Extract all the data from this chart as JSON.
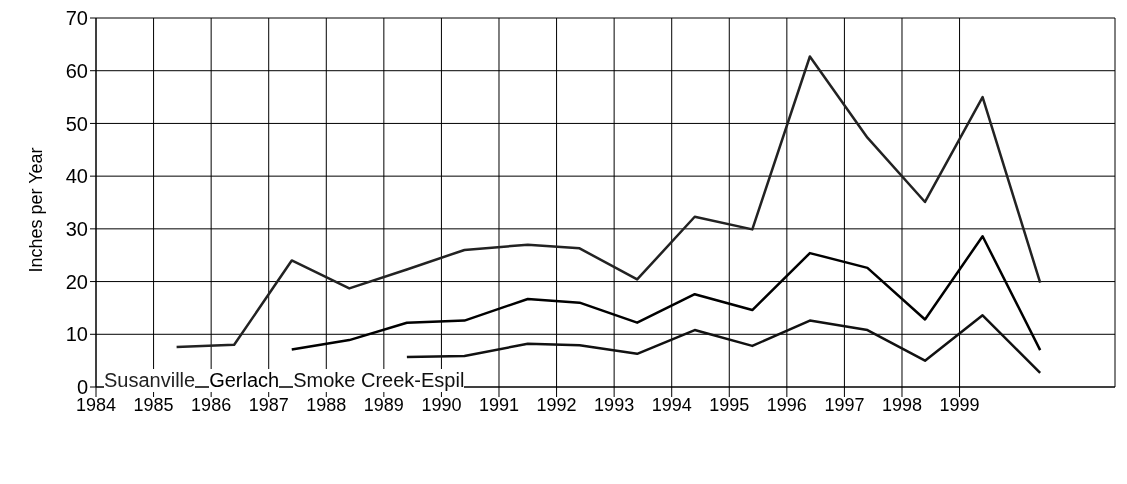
{
  "chart_data": {
    "type": "line",
    "ylabel": "Inches per Year",
    "xlim": [
      1984,
      2001.7
    ],
    "xticks": [
      1984,
      1985,
      1986,
      1987,
      1988,
      1989,
      1990,
      1991,
      1992,
      1993,
      1994,
      1995,
      1996,
      1997,
      1998,
      1999
    ],
    "ylim": [
      0,
      70
    ],
    "yticks": [
      0,
      10,
      20,
      30,
      40,
      50,
      60,
      70
    ],
    "grid": true,
    "legend": "bottom left",
    "marker": "none",
    "line_style": "solid",
    "series": [
      {
        "name": "Susanville",
        "color": "#222222",
        "x": [
          1985.4,
          1986.4,
          1987.4,
          1988.4,
          1989.4,
          1990.4,
          1991.5,
          1992.4,
          1993.4,
          1994.4,
          1995.4,
          1996.4,
          1997.4,
          1998.4,
          1999.4,
          2000.4
        ],
        "values": [
          7.6,
          8.0,
          24,
          18.7,
          22.3,
          26,
          27,
          26.3,
          20.4,
          32.3,
          29.9,
          62.7,
          47.3,
          35.1,
          55,
          19.8
        ]
      },
      {
        "name": "Gerlach",
        "color": "#000000",
        "x": [
          1987.4,
          1988.4,
          1989.4,
          1990.4,
          1991.5,
          1992.4,
          1993.4,
          1994.4,
          1995.4,
          1996.4,
          1997.4,
          1998.4,
          1999.4,
          2000.4
        ],
        "values": [
          7.1,
          8.9,
          12.2,
          12.6,
          16.7,
          16.0,
          12.2,
          17.6,
          14.6,
          25.4,
          22.6,
          12.8,
          28.6,
          7.0
        ]
      },
      {
        "name": "Smoke Creek-Espil",
        "color": "#111111",
        "x": [
          1989.4,
          1990.4,
          1991.5,
          1992.4,
          1993.4,
          1994.4,
          1995.4,
          1996.4,
          1997.4,
          1998.4,
          1999.4,
          2000.4
        ],
        "values": [
          5.7,
          5.9,
          8.2,
          7.9,
          6.3,
          10.8,
          7.8,
          12.6,
          10.8,
          5.0,
          13.6,
          2.7
        ]
      }
    ]
  }
}
